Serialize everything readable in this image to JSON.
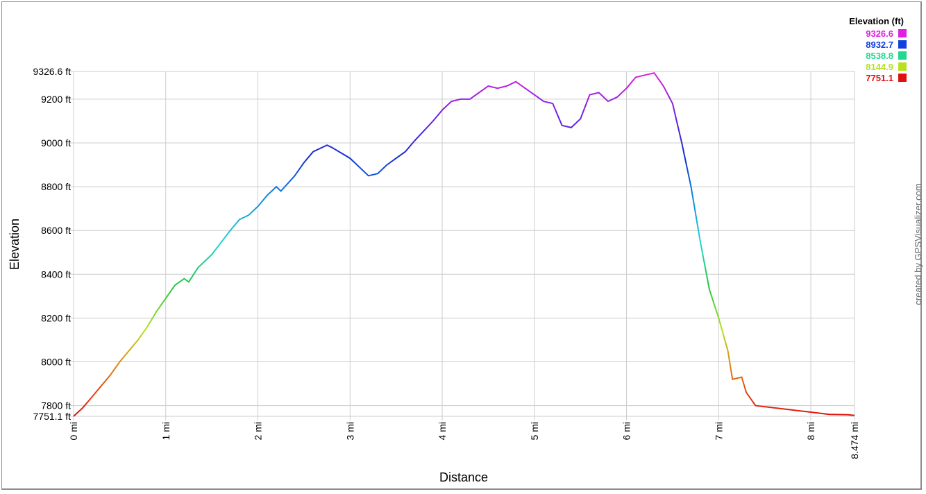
{
  "chart_data": {
    "type": "line",
    "xlabel": "Distance",
    "ylabel": "Elevation",
    "xlim": [
      0,
      8.474
    ],
    "ylim": [
      7751.1,
      9326.6
    ],
    "grid": true,
    "x_ticks": [
      {
        "value": 0,
        "label": "0 mi"
      },
      {
        "value": 1,
        "label": "1 mi"
      },
      {
        "value": 2,
        "label": "2 mi"
      },
      {
        "value": 3,
        "label": "3 mi"
      },
      {
        "value": 4,
        "label": "4 mi"
      },
      {
        "value": 5,
        "label": "5 mi"
      },
      {
        "value": 6,
        "label": "6 mi"
      },
      {
        "value": 7,
        "label": "7 mi"
      },
      {
        "value": 8,
        "label": "8 mi"
      },
      {
        "value": 8.474,
        "label": "8.474 mi"
      }
    ],
    "y_ticks": [
      {
        "value": 9326.6,
        "label": "9326.6 ft"
      },
      {
        "value": 9200,
        "label": "9200 ft"
      },
      {
        "value": 9000,
        "label": "9000 ft"
      },
      {
        "value": 8800,
        "label": "8800 ft"
      },
      {
        "value": 8600,
        "label": "8600 ft"
      },
      {
        "value": 8400,
        "label": "8400 ft"
      },
      {
        "value": 8200,
        "label": "8200 ft"
      },
      {
        "value": 8000,
        "label": "8000 ft"
      },
      {
        "value": 7800,
        "label": "7800 ft"
      },
      {
        "value": 7751.1,
        "label": "7751.1 ft"
      }
    ],
    "legend": {
      "title": "Elevation (ft)",
      "position": "top-right",
      "entries": [
        {
          "label": "9326.6",
          "color": "#e020e0"
        },
        {
          "label": "8932.7",
          "color": "#1040e0"
        },
        {
          "label": "8538.8",
          "color": "#20d890"
        },
        {
          "label": "8144.9",
          "color": "#b8e020"
        },
        {
          "label": "7751.1",
          "color": "#e01010"
        }
      ]
    },
    "series": [
      {
        "values": [
          [
            0.0,
            7751
          ],
          [
            0.1,
            7790
          ],
          [
            0.2,
            7840
          ],
          [
            0.3,
            7890
          ],
          [
            0.4,
            7940
          ],
          [
            0.5,
            8000
          ],
          [
            0.6,
            8050
          ],
          [
            0.7,
            8100
          ],
          [
            0.8,
            8160
          ],
          [
            0.9,
            8230
          ],
          [
            1.0,
            8290
          ],
          [
            1.1,
            8350
          ],
          [
            1.2,
            8380
          ],
          [
            1.25,
            8365
          ],
          [
            1.35,
            8430
          ],
          [
            1.5,
            8490
          ],
          [
            1.7,
            8600
          ],
          [
            1.8,
            8650
          ],
          [
            1.9,
            8670
          ],
          [
            2.0,
            8710
          ],
          [
            2.1,
            8760
          ],
          [
            2.2,
            8800
          ],
          [
            2.25,
            8780
          ],
          [
            2.4,
            8850
          ],
          [
            2.5,
            8910
          ],
          [
            2.6,
            8960
          ],
          [
            2.75,
            8990
          ],
          [
            2.8,
            8980
          ],
          [
            3.0,
            8930
          ],
          [
            3.2,
            8850
          ],
          [
            3.3,
            8860
          ],
          [
            3.4,
            8900
          ],
          [
            3.6,
            8960
          ],
          [
            3.7,
            9010
          ],
          [
            3.9,
            9100
          ],
          [
            4.0,
            9150
          ],
          [
            4.1,
            9190
          ],
          [
            4.2,
            9200
          ],
          [
            4.3,
            9200
          ],
          [
            4.4,
            9230
          ],
          [
            4.5,
            9260
          ],
          [
            4.6,
            9250
          ],
          [
            4.7,
            9260
          ],
          [
            4.8,
            9280
          ],
          [
            4.9,
            9250
          ],
          [
            5.0,
            9220
          ],
          [
            5.1,
            9190
          ],
          [
            5.2,
            9180
          ],
          [
            5.3,
            9080
          ],
          [
            5.4,
            9070
          ],
          [
            5.5,
            9110
          ],
          [
            5.6,
            9220
          ],
          [
            5.7,
            9230
          ],
          [
            5.8,
            9190
          ],
          [
            5.9,
            9210
          ],
          [
            6.0,
            9250
          ],
          [
            6.1,
            9300
          ],
          [
            6.2,
            9310
          ],
          [
            6.3,
            9320
          ],
          [
            6.4,
            9260
          ],
          [
            6.5,
            9180
          ],
          [
            6.6,
            9000
          ],
          [
            6.7,
            8800
          ],
          [
            6.8,
            8550
          ],
          [
            6.9,
            8330
          ],
          [
            7.0,
            8200
          ],
          [
            7.1,
            8050
          ],
          [
            7.15,
            7920
          ],
          [
            7.25,
            7930
          ],
          [
            7.3,
            7860
          ],
          [
            7.4,
            7800
          ],
          [
            7.6,
            7790
          ],
          [
            7.8,
            7780
          ],
          [
            8.0,
            7770
          ],
          [
            8.2,
            7760
          ],
          [
            8.4,
            7758
          ],
          [
            8.474,
            7755
          ]
        ]
      }
    ]
  },
  "credit": "created by GPSVisualizer.com"
}
